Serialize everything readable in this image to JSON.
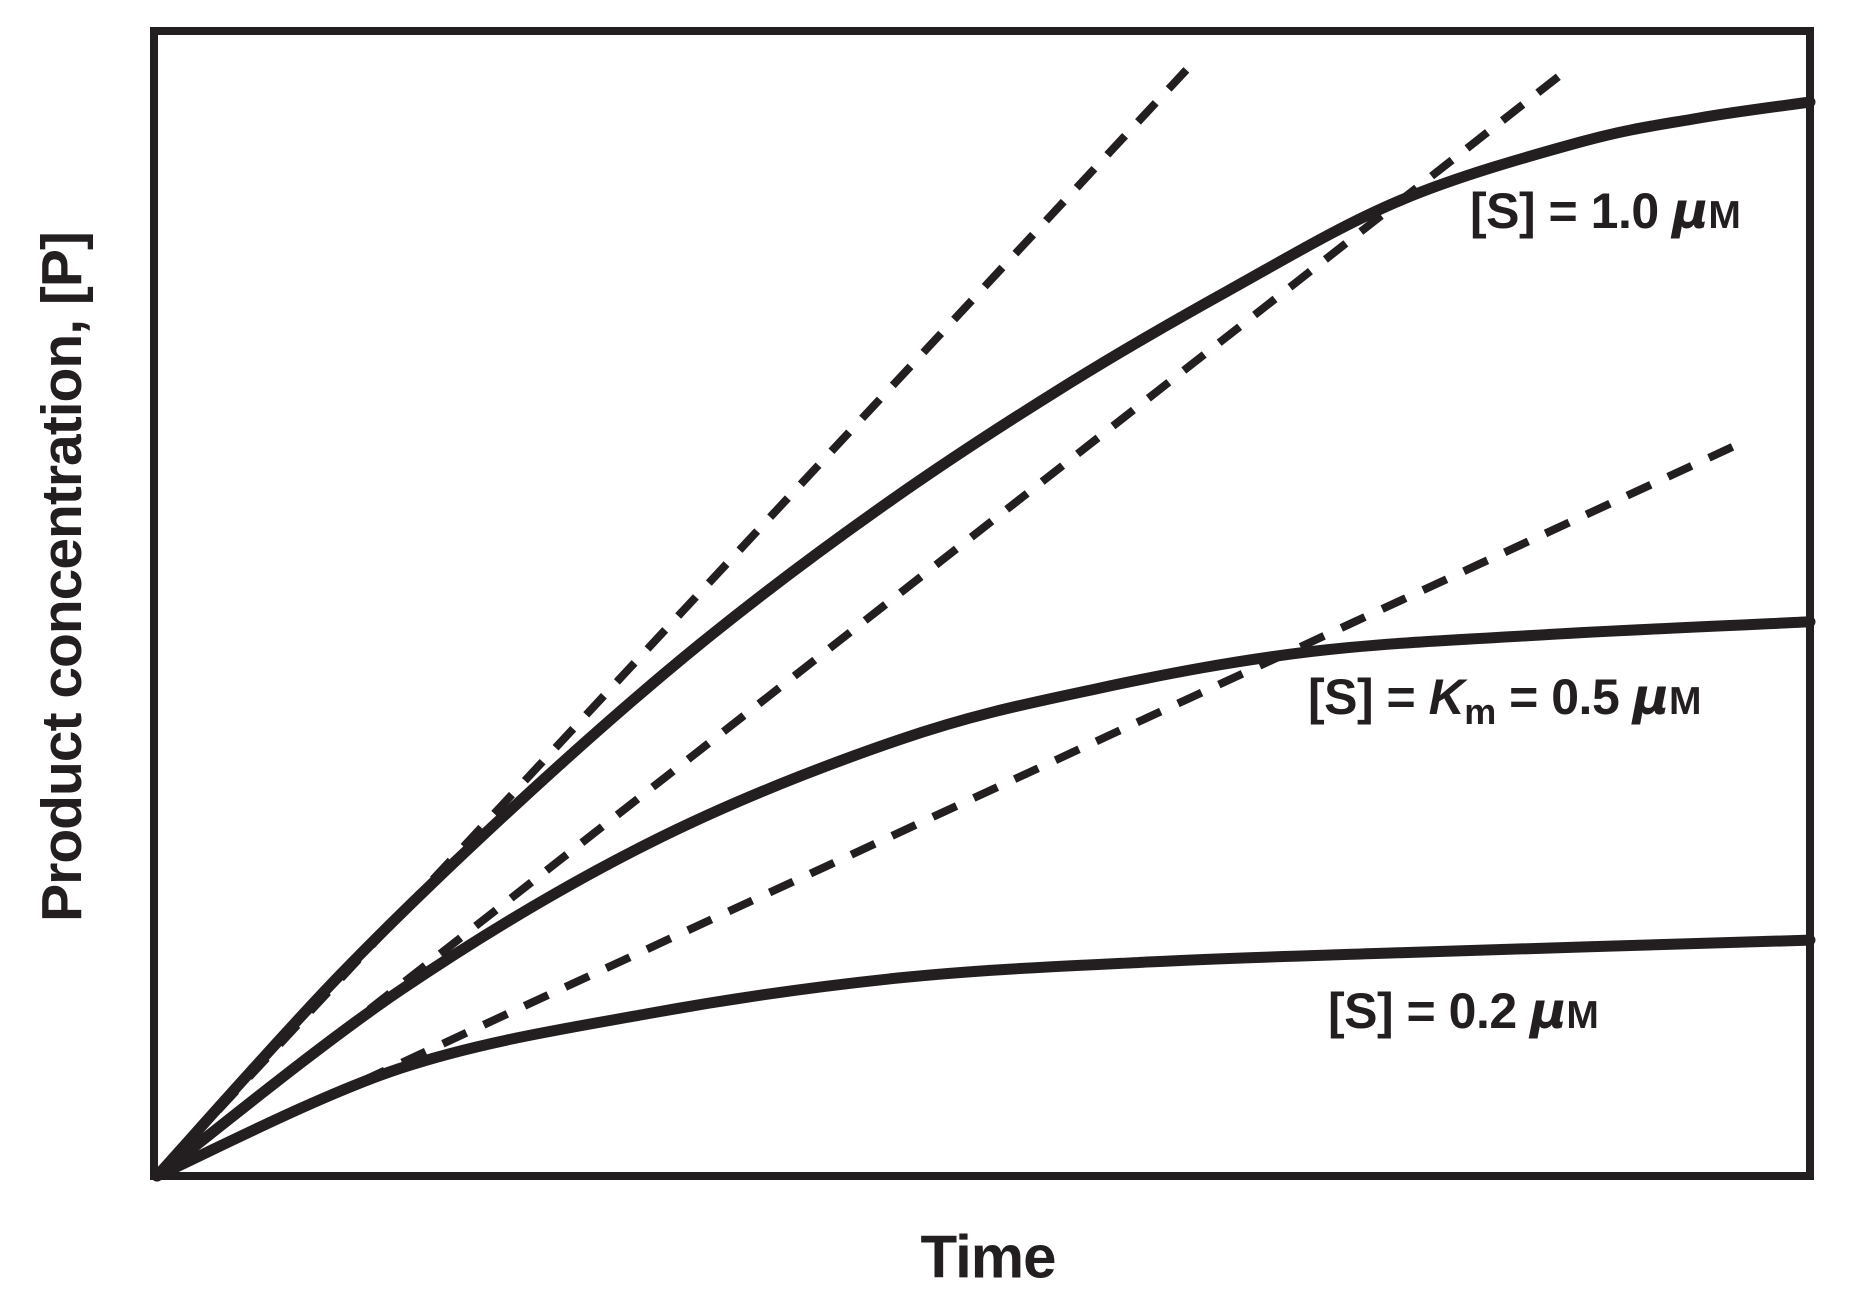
{
  "figure": {
    "background": "#ffffff",
    "ink": "#231f20"
  },
  "axes": {
    "xlabel": "Time",
    "ylabel": "Product concentration, [P]"
  },
  "labels": {
    "s10": {
      "pre": "[S] = 1.0 ",
      "mu": "μ",
      "unit": "M"
    },
    "s05": {
      "pre": "[S] = ",
      "k": "K",
      "sub": "m",
      "mid": " = 0.5 ",
      "mu": "μ",
      "unit": "M"
    },
    "s02": {
      "pre": "[S] = 0.2 ",
      "mu": "μ",
      "unit": "M"
    }
  },
  "chart_data": {
    "type": "line",
    "title": "",
    "xlabel": "Time",
    "ylabel": "Product concentration, [P]",
    "x_ticks": [],
    "y_ticks": [],
    "axes_numeric": false,
    "grid": false,
    "legend": "none (curves labeled by in-plot annotations)",
    "description": "Schematic enzyme-kinetics progress curves: product concentration [P] versus time for three substrate concentrations ([S] = 1.0 uM, [S] = Km = 0.5 uM, [S] = 0.2 uM). Each solid curve rises from the origin and saturates; a dashed straight tangent line from the origin shows each curve's initial velocity. Coordinates below are fractions of the plot area (x: 0 = left/time zero, 1 = right edge; y: 0 = bottom, 1 = top).",
    "series": [
      {
        "key": "s10",
        "name": "[S] = 1.0 μM",
        "role": "progress-curve",
        "line": "solid",
        "points_frac": [
          [
            0,
            0
          ],
          [
            0.111,
            0.176
          ],
          [
            0.22,
            0.328
          ],
          [
            0.328,
            0.464
          ],
          [
            0.437,
            0.583
          ],
          [
            0.546,
            0.687
          ],
          [
            0.649,
            0.774
          ],
          [
            0.752,
            0.852
          ],
          [
            0.861,
            0.903
          ],
          [
            0.933,
            0.924
          ],
          [
            1.0,
            0.938
          ]
        ]
      },
      {
        "key": "s05",
        "name": "[S] = Km = 0.5 μM",
        "role": "progress-curve",
        "line": "solid",
        "points_frac": [
          [
            0,
            0
          ],
          [
            0.147,
            0.162
          ],
          [
            0.298,
            0.291
          ],
          [
            0.449,
            0.381
          ],
          [
            0.57,
            0.426
          ],
          [
            0.698,
            0.458
          ],
          [
            0.843,
            0.473
          ],
          [
            1.0,
            0.484
          ]
        ]
      },
      {
        "key": "s02",
        "name": "[S] = 0.2 μM",
        "role": "progress-curve",
        "line": "solid",
        "points_frac": [
          [
            0,
            0
          ],
          [
            0.147,
            0.094
          ],
          [
            0.298,
            0.142
          ],
          [
            0.449,
            0.173
          ],
          [
            0.601,
            0.187
          ],
          [
            0.752,
            0.195
          ],
          [
            1.0,
            0.206
          ]
        ]
      },
      {
        "key": "t10",
        "name": "initial-rate tangent for [S] = 1.0 μM",
        "role": "tangent",
        "line": "dashed",
        "points_frac": [
          [
            0,
            0
          ],
          [
            0.624,
            0.968
          ]
        ]
      },
      {
        "key": "t05",
        "name": "initial-rate tangent for [S] = 0.5 μM",
        "role": "tangent",
        "line": "dashed",
        "points_frac": [
          [
            0,
            0
          ],
          [
            0.853,
            0.966
          ]
        ]
      },
      {
        "key": "t02",
        "name": "initial-rate tangent for [S] = 0.2 μM",
        "role": "tangent",
        "line": "dashed",
        "points_frac": [
          [
            0,
            0
          ],
          [
            0.961,
            0.642
          ]
        ]
      }
    ],
    "annotations": [
      {
        "text": "[S] = 1.0 μM",
        "attached_to": "s10"
      },
      {
        "text": "[S] = Km = 0.5 μM",
        "attached_to": "s05"
      },
      {
        "text": "[S] = 0.2 μM",
        "attached_to": "s02"
      }
    ]
  }
}
